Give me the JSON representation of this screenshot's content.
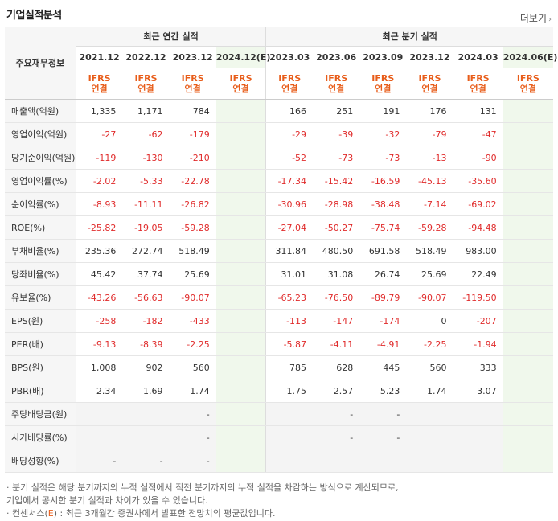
{
  "header": {
    "title": "기업실적분석",
    "more_label": "더보기",
    "more_icon": "chevron-right-icon"
  },
  "table": {
    "row_header_label": "주요재무정보",
    "group_annual": "최근 연간 실적",
    "group_quarter": "최근 분기 실적",
    "periods": [
      "2021.12",
      "2022.12",
      "2023.12",
      "2024.12(E)",
      "2023.03",
      "2023.06",
      "2023.09",
      "2023.12",
      "2024.03",
      "2024.06(E)"
    ],
    "ifrs_label": "IFRS",
    "consol_label": "연결",
    "rows": [
      {
        "label": "매출액(억원)",
        "values": [
          "1,335",
          "1,171",
          "784",
          "",
          "166",
          "251",
          "191",
          "176",
          "131",
          ""
        ]
      },
      {
        "label": "영업이익(억원)",
        "values": [
          "-27",
          "-62",
          "-179",
          "",
          "-29",
          "-39",
          "-32",
          "-79",
          "-47",
          ""
        ]
      },
      {
        "label": "당기순이익(억원)",
        "values": [
          "-119",
          "-130",
          "-210",
          "",
          "-52",
          "-73",
          "-73",
          "-13",
          "-90",
          ""
        ]
      },
      {
        "label": "영업이익률(%)",
        "values": [
          "-2.02",
          "-5.33",
          "-22.78",
          "",
          "-17.34",
          "-15.42",
          "-16.59",
          "-45.13",
          "-35.60",
          ""
        ]
      },
      {
        "label": "순이익률(%)",
        "values": [
          "-8.93",
          "-11.11",
          "-26.82",
          "",
          "-30.96",
          "-28.98",
          "-38.48",
          "-7.14",
          "-69.02",
          ""
        ]
      },
      {
        "label": "ROE(%)",
        "values": [
          "-25.82",
          "-19.05",
          "-59.28",
          "",
          "-27.04",
          "-50.27",
          "-75.74",
          "-59.28",
          "-94.48",
          ""
        ]
      },
      {
        "label": "부채비율(%)",
        "values": [
          "235.36",
          "272.74",
          "518.49",
          "",
          "311.84",
          "480.50",
          "691.58",
          "518.49",
          "983.00",
          ""
        ]
      },
      {
        "label": "당좌비율(%)",
        "values": [
          "45.42",
          "37.74",
          "25.69",
          "",
          "31.01",
          "31.08",
          "26.74",
          "25.69",
          "22.49",
          ""
        ]
      },
      {
        "label": "유보율(%)",
        "values": [
          "-43.26",
          "-56.63",
          "-90.07",
          "",
          "-65.23",
          "-76.50",
          "-89.79",
          "-90.07",
          "-119.50",
          ""
        ]
      },
      {
        "label": "EPS(원)",
        "values": [
          "-258",
          "-182",
          "-433",
          "",
          "-113",
          "-147",
          "-174",
          "0",
          "-207",
          ""
        ]
      },
      {
        "label": "PER(배)",
        "values": [
          "-9.13",
          "-8.39",
          "-2.25",
          "",
          "-5.87",
          "-4.11",
          "-4.91",
          "-2.25",
          "-1.94",
          ""
        ]
      },
      {
        "label": "BPS(원)",
        "values": [
          "1,008",
          "902",
          "560",
          "",
          "785",
          "628",
          "445",
          "560",
          "333",
          ""
        ]
      },
      {
        "label": "PBR(배)",
        "values": [
          "2.34",
          "1.69",
          "1.74",
          "",
          "1.75",
          "2.57",
          "5.23",
          "1.74",
          "3.07",
          ""
        ]
      },
      {
        "label": "주당배당금(원)",
        "values": [
          "",
          "",
          "-",
          "",
          "",
          "-",
          "-",
          "",
          "",
          ""
        ]
      },
      {
        "label": "시가배당률(%)",
        "values": [
          "",
          "",
          "-",
          "",
          "",
          "-",
          "-",
          "",
          "",
          ""
        ]
      },
      {
        "label": "배당성향(%)",
        "values": [
          "-",
          "-",
          "-",
          "",
          "",
          "",
          "",
          "",
          "",
          ""
        ]
      }
    ]
  },
  "notes": {
    "line1": "· 분기 실적은 해당 분기까지의 누적 실적에서 직전 분기까지의 누적 실적을 차감하는 방식으로 계산되므로,",
    "line2": "  기업에서 공시한 분기 실적과 차이가 있을 수 있습니다.",
    "line3_prefix": "· 컨센서스(",
    "line3_e": "E",
    "line3_suffix": ") : 최근 3개월간 증권사에서 발표한 전망치의 평균값입니다."
  }
}
